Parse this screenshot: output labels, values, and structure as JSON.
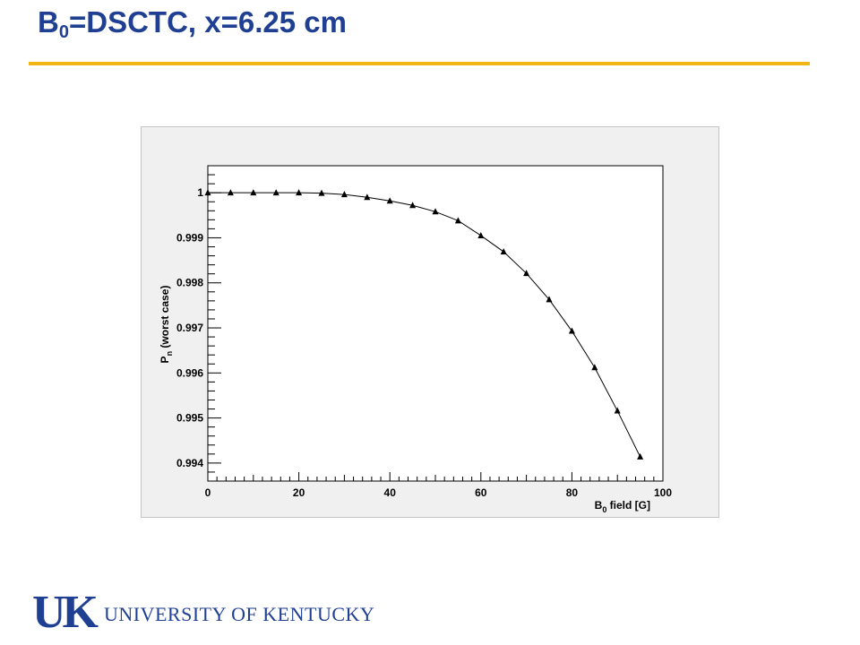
{
  "slide": {
    "title_main": "B",
    "title_sub": "0",
    "title_rest": "=DSCTC, x=6.25 cm"
  },
  "footer": {
    "logo_text": "UK",
    "institution": "UNIVERSITY OF KENTUCKY"
  },
  "chart_data": {
    "type": "line",
    "title": "",
    "xlabel": "B",
    "xlabel_sub": "0",
    "xlabel_rest": " field  [G]",
    "ylabel": "P",
    "ylabel_sub": "n",
    "ylabel_rest": "  (worst case)",
    "xlim": [
      0,
      100
    ],
    "ylim": [
      0.9936,
      1.0006
    ],
    "x_ticks": [
      0,
      20,
      40,
      60,
      80,
      100
    ],
    "y_ticks": [
      0.994,
      0.995,
      0.996,
      0.997,
      0.998,
      0.999,
      1
    ],
    "grid": false,
    "colors": {
      "marker": "#000000",
      "line": "#000000",
      "frame_bg": "#f0f0f0",
      "plot_bg": "#ffffff"
    },
    "series": [
      {
        "marker": "triangle",
        "x": [
          0,
          5,
          10,
          15,
          20,
          25,
          30,
          35,
          40,
          45,
          50,
          55,
          60,
          65,
          70,
          75,
          80,
          85,
          90,
          95
        ],
        "y": [
          1.0,
          1.0,
          1.0,
          1.0,
          1.0,
          0.99999,
          0.99996,
          0.9999,
          0.99982,
          0.99972,
          0.99958,
          0.99938,
          0.99905,
          0.99869,
          0.99821,
          0.99763,
          0.99693,
          0.99612,
          0.99516,
          0.99414
        ]
      }
    ]
  }
}
